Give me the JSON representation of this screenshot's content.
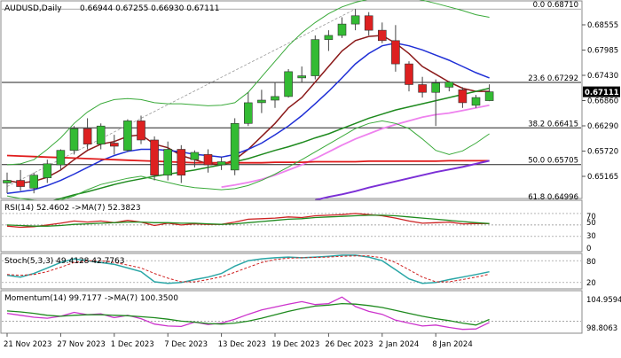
{
  "chart_data": [
    {
      "type": "candlestick",
      "title": "AUDUSD,Daily",
      "ohlc_header": "0.66944 0.67255 0.66930 0.67111",
      "last_price": "0.67111",
      "ylim": [
        0.6505,
        0.6885
      ],
      "y_ticks": [
        "0.68555",
        "0.67985",
        "0.67430",
        "0.66860",
        "0.66290",
        "0.65720",
        "0.65165"
      ],
      "x_labels": [
        {
          "label": "21 Nov 2023",
          "idx": 0
        },
        {
          "label": "27 Nov 2023",
          "idx": 4
        },
        {
          "label": "1 Dec 2023",
          "idx": 8
        },
        {
          "label": "7 Dec 2023",
          "idx": 12
        },
        {
          "label": "13 Dec 2023",
          "idx": 16
        },
        {
          "label": "19 Dec 2023",
          "idx": 20
        },
        {
          "label": "26 Dec 2023",
          "idx": 24
        },
        {
          "label": "2 Jan 2024",
          "idx": 28
        },
        {
          "label": "8 Jan 2024",
          "idx": 32
        }
      ],
      "fib_levels": [
        {
          "label": "0.0 0.68710",
          "value": 0.6871
        },
        {
          "label": "23.6 0.67292",
          "value": 0.67292
        },
        {
          "label": "38.2 0.66415",
          "value": 0.66415
        },
        {
          "label": "50.0 0.65705",
          "value": 0.65705
        },
        {
          "label": "61.8 0.64996",
          "value": 0.64996
        }
      ],
      "candles": [
        {
          "o": 0.6535,
          "h": 0.6555,
          "l": 0.6515,
          "c": 0.654
        },
        {
          "o": 0.654,
          "h": 0.656,
          "l": 0.652,
          "c": 0.6528
        },
        {
          "o": 0.6525,
          "h": 0.6555,
          "l": 0.6515,
          "c": 0.655
        },
        {
          "o": 0.6545,
          "h": 0.658,
          "l": 0.6535,
          "c": 0.6572
        },
        {
          "o": 0.657,
          "h": 0.66,
          "l": 0.656,
          "c": 0.6598
        },
        {
          "o": 0.6598,
          "h": 0.6645,
          "l": 0.659,
          "c": 0.664
        },
        {
          "o": 0.664,
          "h": 0.666,
          "l": 0.66,
          "c": 0.661
        },
        {
          "o": 0.661,
          "h": 0.665,
          "l": 0.66,
          "c": 0.6645
        },
        {
          "o": 0.6612,
          "h": 0.6628,
          "l": 0.659,
          "c": 0.6606
        },
        {
          "o": 0.6598,
          "h": 0.6658,
          "l": 0.6595,
          "c": 0.6655
        },
        {
          "o": 0.6655,
          "h": 0.6665,
          "l": 0.661,
          "c": 0.6618
        },
        {
          "o": 0.6618,
          "h": 0.6625,
          "l": 0.654,
          "c": 0.655
        },
        {
          "o": 0.655,
          "h": 0.6615,
          "l": 0.654,
          "c": 0.66
        },
        {
          "o": 0.66,
          "h": 0.6608,
          "l": 0.6535,
          "c": 0.655
        },
        {
          "o": 0.658,
          "h": 0.6598,
          "l": 0.6565,
          "c": 0.6594
        },
        {
          "o": 0.659,
          "h": 0.66,
          "l": 0.6555,
          "c": 0.657
        },
        {
          "o": 0.657,
          "h": 0.6585,
          "l": 0.656,
          "c": 0.6576
        },
        {
          "o": 0.656,
          "h": 0.666,
          "l": 0.655,
          "c": 0.665
        },
        {
          "o": 0.665,
          "h": 0.671,
          "l": 0.6645,
          "c": 0.669
        },
        {
          "o": 0.669,
          "h": 0.6715,
          "l": 0.667,
          "c": 0.6695
        },
        {
          "o": 0.6695,
          "h": 0.673,
          "l": 0.668,
          "c": 0.6702
        },
        {
          "o": 0.6702,
          "h": 0.6755,
          "l": 0.67,
          "c": 0.675
        },
        {
          "o": 0.6738,
          "h": 0.676,
          "l": 0.673,
          "c": 0.6742
        },
        {
          "o": 0.6742,
          "h": 0.682,
          "l": 0.6735,
          "c": 0.6812
        },
        {
          "o": 0.6812,
          "h": 0.683,
          "l": 0.679,
          "c": 0.682
        },
        {
          "o": 0.682,
          "h": 0.6855,
          "l": 0.6815,
          "c": 0.6842
        },
        {
          "o": 0.6842,
          "h": 0.6871,
          "l": 0.683,
          "c": 0.6858
        },
        {
          "o": 0.6858,
          "h": 0.6865,
          "l": 0.682,
          "c": 0.683
        },
        {
          "o": 0.683,
          "h": 0.6845,
          "l": 0.6805,
          "c": 0.681
        },
        {
          "o": 0.681,
          "h": 0.684,
          "l": 0.675,
          "c": 0.6765
        },
        {
          "o": 0.6765,
          "h": 0.677,
          "l": 0.6712,
          "c": 0.6725
        },
        {
          "o": 0.6725,
          "h": 0.674,
          "l": 0.67,
          "c": 0.671
        },
        {
          "o": 0.671,
          "h": 0.6735,
          "l": 0.6645,
          "c": 0.6728
        },
        {
          "o": 0.672,
          "h": 0.6732,
          "l": 0.6712,
          "c": 0.673
        },
        {
          "o": 0.6715,
          "h": 0.672,
          "l": 0.668,
          "c": 0.669
        },
        {
          "o": 0.6685,
          "h": 0.6705,
          "l": 0.668,
          "c": 0.67
        },
        {
          "o": 0.6694,
          "h": 0.67255,
          "l": 0.6693,
          "c": 0.67111
        }
      ],
      "overlays": [
        {
          "key": "ma_short",
          "color": "#8b1a1a",
          "width": 1.5,
          "values": [
            0.654,
            0.6535,
            0.6538,
            0.6546,
            0.656,
            0.658,
            0.6598,
            0.661,
            0.6615,
            0.6625,
            0.6628,
            0.661,
            0.6603,
            0.6588,
            0.658,
            0.6572,
            0.657,
            0.658,
            0.66,
            0.6625,
            0.665,
            0.668,
            0.67,
            0.673,
            0.676,
            0.679,
            0.681,
            0.6818,
            0.682,
            0.6805,
            0.6785,
            0.676,
            0.6745,
            0.673,
            0.6718,
            0.6712,
            0.6712
          ]
        },
        {
          "key": "ma_mid",
          "color": "#1f2fd6",
          "width": 1.5,
          "values": [
            0.6515,
            0.6518,
            0.6522,
            0.653,
            0.654,
            0.6552,
            0.6565,
            0.6578,
            0.6588,
            0.6596,
            0.66,
            0.66,
            0.6598,
            0.6595,
            0.659,
            0.6588,
            0.6585,
            0.659,
            0.66,
            0.6612,
            0.6628,
            0.6645,
            0.6665,
            0.6688,
            0.6712,
            0.6738,
            0.6765,
            0.6785,
            0.68,
            0.6805,
            0.68,
            0.6792,
            0.6782,
            0.6772,
            0.676,
            0.6748,
            0.6738
          ]
        },
        {
          "key": "ma_long",
          "color": "#1e8a1e",
          "width": 1.5,
          "values": [
            0.6482,
            0.6487,
            0.6492,
            0.6498,
            0.6505,
            0.6512,
            0.6518,
            0.6525,
            0.6532,
            0.6538,
            0.6543,
            0.6548,
            0.6552,
            0.6556,
            0.656,
            0.6565,
            0.657,
            0.6576,
            0.6582,
            0.659,
            0.6598,
            0.6605,
            0.6613,
            0.6622,
            0.663,
            0.664,
            0.665,
            0.666,
            0.6668,
            0.6676,
            0.6682,
            0.6688,
            0.6694,
            0.67,
            0.6706,
            0.6712,
            0.6718
          ]
        },
        {
          "key": "ma_100",
          "color": "#ee82ee",
          "width": 1.8,
          "values": [
            null,
            null,
            null,
            null,
            null,
            null,
            null,
            null,
            null,
            null,
            null,
            null,
            null,
            null,
            null,
            null,
            0.6527,
            0.6531,
            0.6536,
            0.6542,
            0.655,
            0.656,
            0.657,
            0.6582,
            0.6595,
            0.6608,
            0.662,
            0.663,
            0.664,
            0.6648,
            0.6655,
            0.6662,
            0.6667,
            0.667,
            0.6675,
            0.668,
            0.6685
          ]
        },
        {
          "key": "ma_200",
          "color": "#e01b1b",
          "width": 1.8,
          "values": [
            0.6588,
            0.6587,
            0.6586,
            0.6585,
            0.6584,
            0.6583,
            0.6582,
            0.6581,
            0.658,
            0.6579,
            0.6578,
            0.6577,
            0.6576,
            0.6575,
            0.6574,
            0.6574,
            0.6574,
            0.6574,
            0.6574,
            0.6574,
            0.6575,
            0.6575,
            0.6575,
            0.6576,
            0.6576,
            0.6576,
            0.6576,
            0.6577,
            0.6577,
            0.6577,
            0.6577,
            0.6577,
            0.6577,
            0.6578,
            0.6578,
            0.6578,
            0.6578
          ]
        },
        {
          "key": "ma_300",
          "color": "#7b2fd6",
          "width": 2.0,
          "values": [
            null,
            null,
            null,
            null,
            null,
            null,
            null,
            null,
            null,
            null,
            null,
            null,
            null,
            null,
            null,
            null,
            null,
            null,
            null,
            null,
            null,
            null,
            null,
            0.6502,
            0.6508,
            0.6513,
            0.6519,
            0.6526,
            0.6532,
            0.6538,
            0.6544,
            0.655,
            0.6556,
            0.6561,
            0.6566,
            0.6572,
            0.6578
          ]
        },
        {
          "key": "bb_upper",
          "color": "#3aaa3a",
          "width": 1,
          "values": [
            0.657,
            0.6572,
            0.658,
            0.66,
            0.6622,
            0.665,
            0.6672,
            0.6688,
            0.6696,
            0.6698,
            0.6696,
            0.669,
            0.6688,
            0.6688,
            0.6686,
            0.6684,
            0.6685,
            0.669,
            0.671,
            0.674,
            0.677,
            0.68,
            0.6825,
            0.6845,
            0.6862,
            0.6875,
            0.6884,
            0.689,
            0.6895,
            0.6896,
            0.6893,
            0.6888,
            0.6882,
            0.6875,
            0.6868,
            0.686,
            0.6855
          ]
        },
        {
          "key": "bb_lower",
          "color": "#3aaa3a",
          "width": 1,
          "values": [
            0.651,
            0.6505,
            0.6502,
            0.65,
            0.6502,
            0.651,
            0.6522,
            0.6532,
            0.6538,
            0.6544,
            0.6548,
            0.6542,
            0.6536,
            0.653,
            0.6526,
            0.6524,
            0.6522,
            0.6524,
            0.653,
            0.654,
            0.6552,
            0.6566,
            0.658,
            0.6595,
            0.661,
            0.6625,
            0.664,
            0.665,
            0.6655,
            0.665,
            0.664,
            0.662,
            0.6598,
            0.659,
            0.6597,
            0.6612,
            0.663
          ]
        }
      ],
      "channel_line": {
        "from": {
          "idx": 0,
          "value": 0.6528
        },
        "to": {
          "idx": 26,
          "value": 0.6871
        }
      }
    },
    {
      "type": "line",
      "title": "RSI(14) 52.4602 ->MA(7) 52.3823",
      "ylim": [
        5,
        90
      ],
      "y_ticks": [
        "70",
        "50",
        "30",
        "0"
      ],
      "ref_levels": [
        70,
        50,
        30
      ],
      "series": [
        {
          "key": "rsi",
          "color": "#cc2222",
          "width": 1.3,
          "values": [
            48,
            46,
            47,
            50,
            53,
            57,
            55,
            57,
            54,
            58,
            55,
            49,
            53,
            50,
            52,
            51,
            51,
            55,
            60,
            61,
            62,
            64,
            63,
            66,
            67,
            68,
            70,
            68,
            66,
            62,
            57,
            53,
            54,
            55,
            52,
            52.5,
            52.4602
          ]
        },
        {
          "key": "rsi_ma",
          "color": "#1e8a1e",
          "width": 1.3,
          "values": [
            50,
            49,
            48,
            48,
            49,
            51,
            52,
            53,
            54,
            55,
            55,
            54,
            54,
            53,
            53,
            52,
            51,
            52,
            54,
            56,
            58,
            60,
            61,
            63,
            64,
            65,
            66,
            67,
            67,
            66,
            64,
            62,
            60,
            58,
            56,
            54,
            52.3823
          ]
        }
      ]
    },
    {
      "type": "line",
      "title": "Stoch(5,3,3) 49.4128 42.7763",
      "ylim": [
        5,
        95
      ],
      "y_ticks": [
        "80",
        "20"
      ],
      "ref_levels": [
        80,
        20
      ],
      "series": [
        {
          "key": "stoch_k",
          "color": "#2aa6a6",
          "width": 1.5,
          "values": [
            40,
            35,
            45,
            60,
            75,
            85,
            80,
            75,
            70,
            60,
            50,
            22,
            18,
            20,
            28,
            35,
            45,
            65,
            80,
            85,
            88,
            90,
            88,
            90,
            92,
            95,
            95,
            90,
            80,
            55,
            30,
            18,
            20,
            28,
            35,
            42,
            49.4128
          ]
        },
        {
          "key": "stoch_d",
          "color": "#d02020",
          "width": 1,
          "dash": "3,2",
          "values": [
            42,
            40,
            42,
            50,
            62,
            75,
            80,
            80,
            75,
            68,
            60,
            45,
            32,
            22,
            22,
            28,
            36,
            48,
            62,
            75,
            83,
            87,
            88,
            89,
            90,
            92,
            93,
            93,
            88,
            75,
            55,
            35,
            22,
            22,
            28,
            35,
            42.7763
          ]
        }
      ]
    },
    {
      "type": "line",
      "title": "Momentum(14) 99.7177 ->MA(7) 100.3500",
      "ylim": [
        97.7,
        105.9
      ],
      "y_ticks": [
        "104.9594",
        "98.8063"
      ],
      "ref_levels": [
        100
      ],
      "series": [
        {
          "key": "momentum",
          "color": "#cc33cc",
          "width": 1.3,
          "values": [
            101.6,
            101.2,
            100.8,
            100.6,
            101.0,
            101.8,
            101.3,
            101.5,
            100.7,
            101.2,
            100.5,
            99.4,
            99.0,
            98.9,
            99.8,
            99.3,
            99.6,
            100.4,
            101.4,
            102.3,
            102.9,
            103.5,
            104.0,
            103.4,
            103.6,
            104.9594,
            103.0,
            102.0,
            101.4,
            100.2,
            99.6,
            99.0,
            99.2,
            98.7,
            98.3,
            98.4,
            99.7177
          ]
        },
        {
          "key": "momentum_ma",
          "color": "#1e8a1e",
          "width": 1.3,
          "values": [
            102.1,
            101.9,
            101.6,
            101.2,
            101.0,
            101.2,
            101.3,
            101.3,
            101.2,
            101.1,
            100.9,
            100.7,
            100.4,
            100.0,
            99.8,
            99.5,
            99.4,
            99.6,
            100.0,
            100.6,
            101.3,
            102.0,
            102.6,
            103.1,
            103.3,
            103.6,
            103.5,
            103.2,
            102.8,
            102.2,
            101.6,
            101.0,
            100.5,
            100.1,
            99.6,
            99.2,
            100.35
          ]
        }
      ]
    }
  ]
}
